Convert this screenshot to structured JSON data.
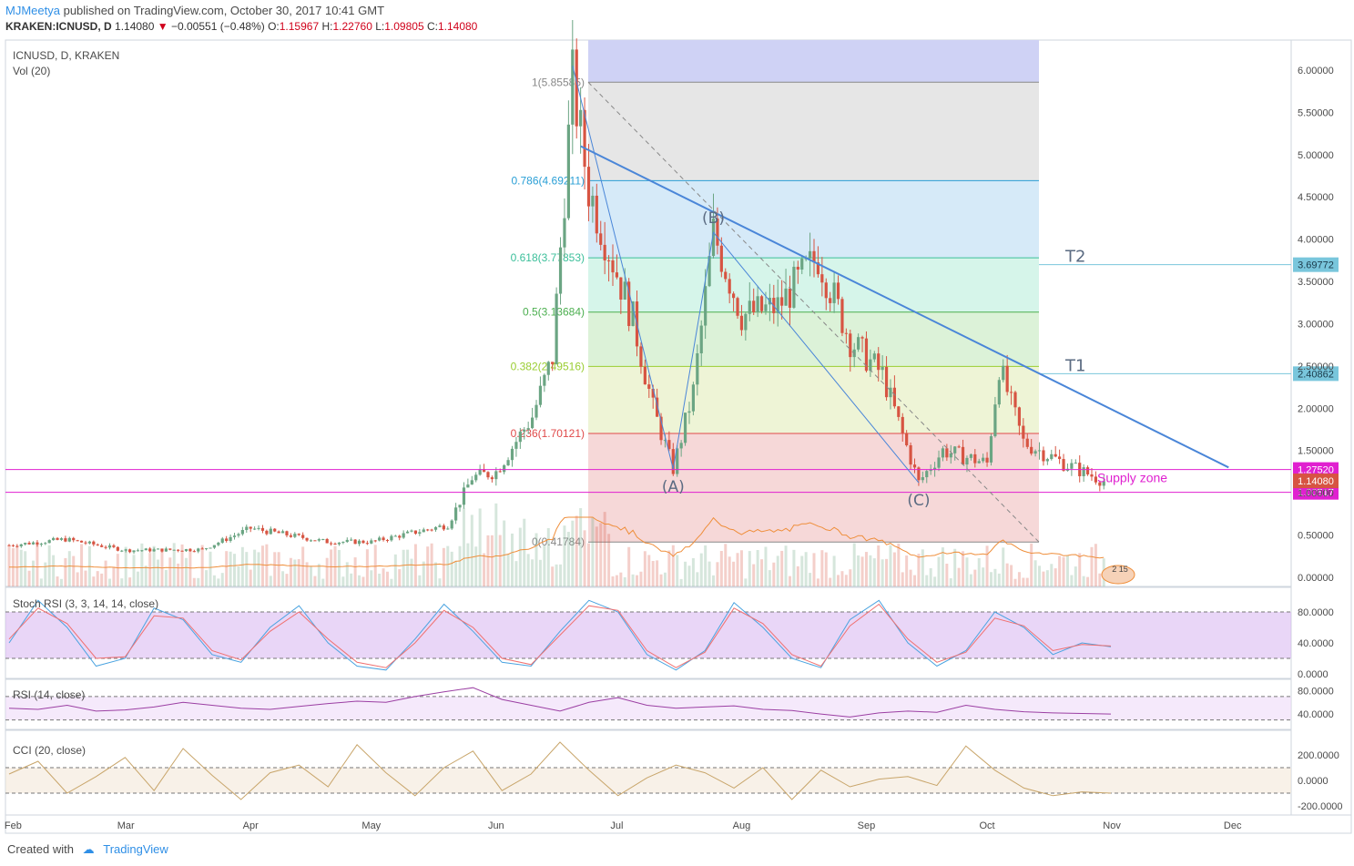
{
  "header": {
    "author": "MJMeetya",
    "published": "published on TradingView.com, October 30, 2017 10:41 GMT",
    "symbol_line": "KRAKEN:ICNUSD, D",
    "last": "1.14080",
    "change": "−0.00551 (−0.48%)",
    "o_label": "O:",
    "o": "1.15967",
    "h_label": "H:",
    "h": "1.22760",
    "l_label": "L:",
    "l": "1.09805",
    "c_label": "C:",
    "c": "1.14080"
  },
  "footer": {
    "created_with": "Created with",
    "brand": "TradingView"
  },
  "colors": {
    "up": "#6ba583",
    "down": "#d75442",
    "accent": "#2f8fe6",
    "trendline": "#4a86d8",
    "magenta": "#e020d0",
    "orange": "#ef8e3a",
    "stoch_k": "#4aa3e0",
    "stoch_d": "#f07070",
    "rsi": "#9b3fa3",
    "cci": "#c8a56a"
  },
  "chart_data": [
    {
      "type": "candlestick",
      "title": "ICNUSD, D, KRAKEN",
      "subtitle": "Vol (20)",
      "x_ticks": [
        "Feb",
        "Mar",
        "Apr",
        "May",
        "Jun",
        "Jul",
        "Aug",
        "Sep",
        "Oct",
        "Nov",
        "Dec"
      ],
      "y_ticks": [
        "6.00000",
        "5.50000",
        "5.00000",
        "4.50000",
        "4.00000",
        "3.50000",
        "3.00000",
        "2.50000",
        "2.00000",
        "1.50000",
        "1.00000",
        "0.50000",
        "0.00000"
      ],
      "ylim": [
        0,
        6.2
      ],
      "price_path": [
        {
          "date": "2017-01-31",
          "close": 0.38
        },
        {
          "date": "2017-02-14",
          "close": 0.45
        },
        {
          "date": "2017-03-01",
          "close": 0.32
        },
        {
          "date": "2017-03-20",
          "close": 0.33
        },
        {
          "date": "2017-04-01",
          "close": 0.58
        },
        {
          "date": "2017-04-20",
          "close": 0.42
        },
        {
          "date": "2017-05-01",
          "close": 0.42
        },
        {
          "date": "2017-05-20",
          "close": 0.62
        },
        {
          "date": "2017-05-26",
          "close": 1.18
        },
        {
          "date": "2017-06-01",
          "close": 1.25
        },
        {
          "date": "2017-06-10",
          "close": 1.9
        },
        {
          "date": "2017-06-15",
          "close": 2.6
        },
        {
          "date": "2017-06-20",
          "close": 5.86
        },
        {
          "date": "2017-06-24",
          "close": 4.6
        },
        {
          "date": "2017-07-01",
          "close": 3.6
        },
        {
          "date": "2017-07-05",
          "close": 3.05
        },
        {
          "date": "2017-07-10",
          "close": 2.0
        },
        {
          "date": "2017-07-15",
          "close": 1.28
        },
        {
          "date": "2017-07-20",
          "close": 2.2
        },
        {
          "date": "2017-07-25",
          "close": 4.08
        },
        {
          "date": "2017-08-01",
          "close": 3.1
        },
        {
          "date": "2017-08-10",
          "close": 3.2
        },
        {
          "date": "2017-08-20",
          "close": 3.8
        },
        {
          "date": "2017-08-28",
          "close": 2.8
        },
        {
          "date": "2017-09-05",
          "close": 2.4
        },
        {
          "date": "2017-09-14",
          "close": 1.12
        },
        {
          "date": "2017-09-20",
          "close": 1.5
        },
        {
          "date": "2017-10-01",
          "close": 1.35
        },
        {
          "date": "2017-10-04",
          "close": 2.5
        },
        {
          "date": "2017-10-10",
          "close": 1.6
        },
        {
          "date": "2017-10-20",
          "close": 1.35
        },
        {
          "date": "2017-10-30",
          "close": 1.1408
        }
      ],
      "fib_levels": [
        {
          "label": "1(5.85585)",
          "value": 5.85585,
          "color": "#888888"
        },
        {
          "label": "0.786(4.69211)",
          "value": 4.69211,
          "color": "#2a9fd6"
        },
        {
          "label": "0.618(3.77853)",
          "value": 3.77853,
          "color": "#3bbf9a"
        },
        {
          "label": "0.5(3.13684)",
          "value": 3.13684,
          "color": "#4caf50"
        },
        {
          "label": "0.382(2.49516)",
          "value": 2.49516,
          "color": "#9acd32"
        },
        {
          "label": "0.236(1.70121)",
          "value": 1.70121,
          "color": "#e04a4a"
        },
        {
          "label": "0(0.41784)",
          "value": 0.41784,
          "color": "#888888"
        }
      ],
      "horizontal_levels": [
        {
          "label": "T2",
          "value": 3.69772,
          "tag": "3.69772"
        },
        {
          "label": "T1",
          "value": 2.40862,
          "tag": "2.40862"
        }
      ],
      "supply_zone": {
        "label": "Supply zone",
        "top": 1.2752,
        "bottom": 1.00517,
        "top_tag": "1.27520",
        "bottom_tag": "1.00517"
      },
      "last_price_tag": "1.14080",
      "waves": [
        {
          "label": "(A)",
          "date": "2017-07-15",
          "price": 1.28
        },
        {
          "label": "(B)",
          "date": "2017-07-25",
          "price": 4.08
        },
        {
          "label": "(C)",
          "date": "2017-09-14",
          "price": 1.12
        }
      ],
      "trendline": [
        {
          "date": "2017-06-22",
          "price": 5.1
        },
        {
          "date": "2017-11-30",
          "price": 1.3
        }
      ],
      "volume_badge": "2 15"
    },
    {
      "type": "line",
      "title": "Stoch RSI (3, 3, 14, 14, close)",
      "y_ticks": [
        "80.0000",
        "40.0000",
        "0.0000"
      ],
      "ylim": [
        0,
        100
      ],
      "band": [
        20,
        80
      ],
      "series": [
        {
          "name": "K",
          "values": [
            40,
            95,
            60,
            10,
            20,
            85,
            70,
            25,
            15,
            60,
            88,
            40,
            10,
            5,
            45,
            90,
            55,
            15,
            10,
            55,
            95,
            80,
            25,
            5,
            30,
            92,
            60,
            20,
            8,
            70,
            95,
            40,
            10,
            30,
            80,
            60,
            25,
            40,
            35
          ]
        },
        {
          "name": "D",
          "values": [
            45,
            85,
            65,
            20,
            22,
            75,
            72,
            30,
            18,
            55,
            80,
            45,
            15,
            8,
            40,
            82,
            60,
            20,
            12,
            50,
            88,
            82,
            30,
            8,
            28,
            85,
            65,
            25,
            10,
            62,
            90,
            45,
            15,
            28,
            72,
            62,
            30,
            38,
            36
          ]
        }
      ]
    },
    {
      "type": "line",
      "title": "RSI (14, close)",
      "y_ticks": [
        "80.0000",
        "40.0000"
      ],
      "ylim": [
        20,
        90
      ],
      "band": [
        30,
        70
      ],
      "series": [
        {
          "name": "RSI",
          "values": [
            50,
            48,
            55,
            45,
            47,
            52,
            60,
            55,
            50,
            48,
            53,
            58,
            62,
            60,
            70,
            78,
            85,
            65,
            55,
            45,
            60,
            68,
            55,
            50,
            52,
            54,
            48,
            46,
            40,
            35,
            42,
            45,
            43,
            55,
            48,
            44,
            42,
            41,
            40
          ]
        }
      ]
    },
    {
      "type": "line",
      "title": "CCI (20, close)",
      "y_ticks": [
        "200.0000",
        "0.0000",
        "-200.0000"
      ],
      "ylim": [
        -250,
        350
      ],
      "band": [
        -100,
        100
      ],
      "series": [
        {
          "name": "CCI",
          "values": [
            50,
            150,
            -100,
            30,
            180,
            -80,
            250,
            40,
            -150,
            60,
            120,
            -50,
            280,
            60,
            -120,
            100,
            230,
            -80,
            50,
            300,
            80,
            -120,
            20,
            120,
            60,
            -60,
            100,
            -150,
            80,
            -50,
            10,
            30,
            -40,
            270,
            80,
            -60,
            -120,
            -90,
            -100
          ]
        }
      ]
    }
  ]
}
